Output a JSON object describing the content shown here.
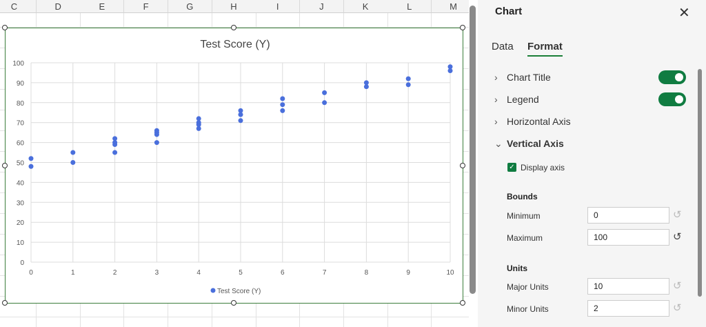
{
  "sheet": {
    "columns": [
      "C",
      "D",
      "E",
      "F",
      "G",
      "H",
      "I",
      "J",
      "K",
      "L",
      "M"
    ]
  },
  "chart_data": {
    "type": "scatter",
    "title": "Test Score (Y)",
    "legend": {
      "entries": [
        "Test Score (Y)"
      ],
      "placement": "bottom"
    },
    "series": [
      {
        "name": "Test Score (Y)",
        "color": "#4a6fdc",
        "points": [
          [
            0,
            52
          ],
          [
            0,
            48
          ],
          [
            1,
            55
          ],
          [
            1,
            50
          ],
          [
            2,
            62
          ],
          [
            2,
            60
          ],
          [
            2,
            59
          ],
          [
            2,
            55
          ],
          [
            3,
            66
          ],
          [
            3,
            65
          ],
          [
            3,
            64
          ],
          [
            3,
            60
          ],
          [
            4,
            72
          ],
          [
            4,
            70
          ],
          [
            4,
            69
          ],
          [
            4,
            67
          ],
          [
            5,
            76
          ],
          [
            5,
            74
          ],
          [
            5,
            71
          ],
          [
            6,
            82
          ],
          [
            6,
            79
          ],
          [
            6,
            76
          ],
          [
            7,
            85
          ],
          [
            7,
            80
          ],
          [
            8,
            90
          ],
          [
            8,
            88
          ],
          [
            9,
            92
          ],
          [
            9,
            89
          ],
          [
            10,
            98
          ],
          [
            10,
            96
          ]
        ]
      }
    ],
    "xlim": [
      0,
      10
    ],
    "ylim": [
      0,
      100
    ],
    "xticks": [
      "0",
      "1",
      "2",
      "3",
      "4",
      "5",
      "6",
      "7",
      "8",
      "9",
      "10"
    ],
    "yticks": [
      "0",
      "10",
      "20",
      "30",
      "40",
      "50",
      "60",
      "70",
      "80",
      "90",
      "100"
    ],
    "grid": true
  },
  "panel": {
    "title": "Chart",
    "tabs": [
      "Data",
      "Format"
    ],
    "active_tab": "Format",
    "sections": {
      "chart_title": {
        "label": "Chart Title",
        "toggle": true
      },
      "legend": {
        "label": "Legend",
        "toggle": true
      },
      "horizontal_axis": {
        "label": "Horizontal Axis"
      },
      "vertical_axis": {
        "label": "Vertical Axis"
      }
    },
    "display_axis": {
      "label": "Display axis",
      "checked": true
    },
    "bounds": {
      "heading": "Bounds",
      "min_label": "Minimum",
      "min_value": "0",
      "max_label": "Maximum",
      "max_value": "100"
    },
    "units": {
      "heading": "Units",
      "major_label": "Major Units",
      "major_value": "10",
      "minor_label": "Minor Units",
      "minor_value": "2"
    },
    "accent": "#107c41"
  }
}
